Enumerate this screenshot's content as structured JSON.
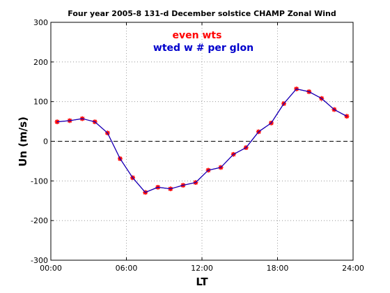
{
  "chart_data": {
    "type": "line",
    "title": "Four year 2005-8 131-d December solstice CHAMP Zonal Wind",
    "xlabel": "LT",
    "ylabel": "Un (m/s)",
    "xlim": [
      0,
      24
    ],
    "ylim": [
      -300,
      300
    ],
    "x_ticks": [
      {
        "value": 0,
        "label": "00:00"
      },
      {
        "value": 6,
        "label": "06:00"
      },
      {
        "value": 12,
        "label": "12:00"
      },
      {
        "value": 18,
        "label": "18:00"
      },
      {
        "value": 24,
        "label": "24:00"
      }
    ],
    "y_ticks": [
      -300,
      -200,
      -100,
      0,
      100,
      200,
      300
    ],
    "grid": true,
    "zero_line": true,
    "legend_placement": "top-center",
    "colors": {
      "series_even": "#ff0000",
      "series_weighted": "#0000cc",
      "zero_line": "#000000",
      "grid": "#888888"
    },
    "x": [
      0.5,
      1.5,
      2.5,
      3.5,
      4.5,
      5.5,
      6.5,
      7.5,
      8.5,
      9.5,
      10.5,
      11.5,
      12.5,
      13.5,
      14.5,
      15.5,
      16.5,
      17.5,
      18.5,
      19.5,
      20.5,
      21.5,
      22.5,
      23.5
    ],
    "series": [
      {
        "name": "even wts",
        "color": "#ff0000",
        "values": [
          49,
          52,
          57,
          49,
          21,
          -44,
          -92,
          -129,
          -116,
          -120,
          -111,
          -104,
          -73,
          -66,
          -33,
          -16,
          24,
          46,
          95,
          132,
          125,
          108,
          80,
          63
        ]
      },
      {
        "name": "wted w # per glon",
        "color": "#0000cc",
        "values": [
          49,
          52,
          57,
          49,
          21,
          -44,
          -92,
          -129,
          -116,
          -120,
          -111,
          -104,
          -73,
          -66,
          -33,
          -16,
          24,
          46,
          95,
          132,
          125,
          108,
          80,
          63
        ]
      }
    ]
  }
}
